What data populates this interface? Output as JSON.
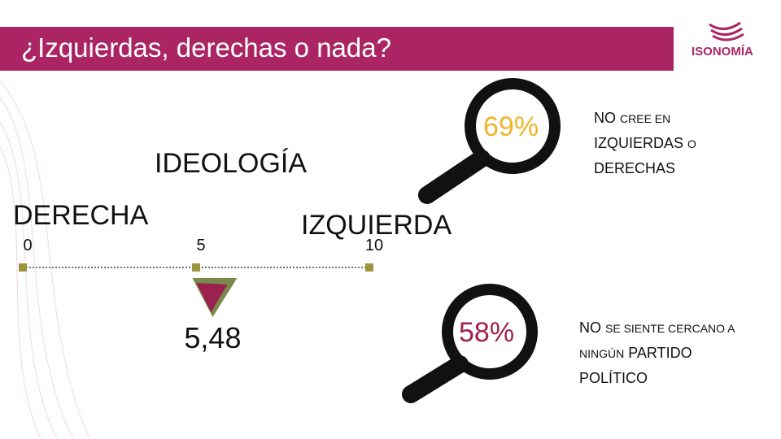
{
  "header": {
    "title": "¿Izquierdas, derechas o nada?",
    "logo": "ISONOMÍA"
  },
  "ideology": {
    "heading": "IDEOLOGÍA",
    "left_label": "DERECHA",
    "right_label": "IZQUIERDA",
    "scale": {
      "ticks": [
        0,
        5,
        10
      ],
      "value": 5.48,
      "value_label": "5,48"
    }
  },
  "stats": [
    {
      "value": "69%",
      "caption": [
        "NO",
        "CREE EN",
        "IZQUIERDAS",
        "O",
        "DERECHAS"
      ]
    },
    {
      "value": "58%",
      "caption": [
        "NO",
        "SE SIENTE CERCANO A",
        "NINGÚN",
        "PARTIDO",
        "POLÍTICO"
      ]
    }
  ]
}
